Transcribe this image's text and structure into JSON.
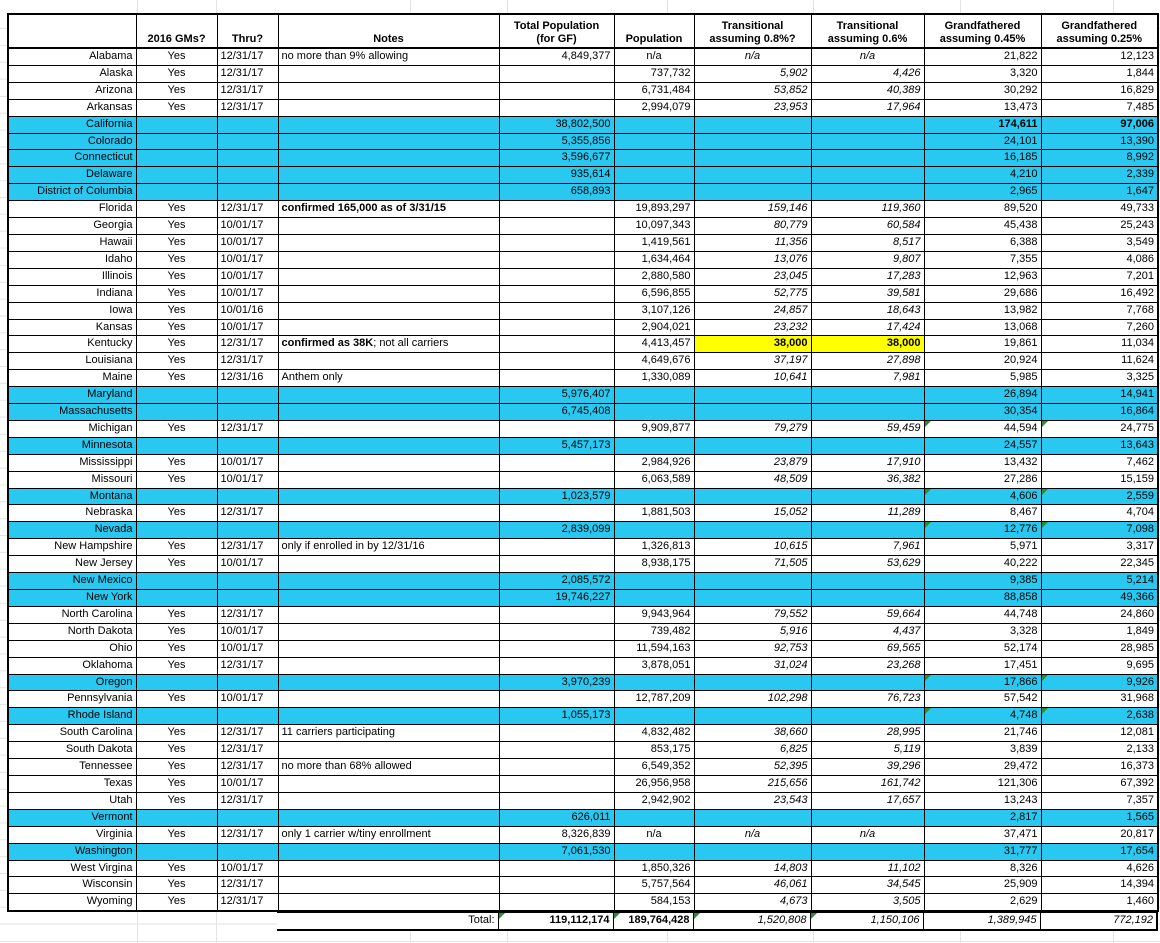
{
  "sheet": {
    "colors": {
      "row_highlight": "#29C8F0",
      "cell_highlight": "#FFFF00",
      "flag_triangle": "#2E8B34",
      "grid": "#000000"
    },
    "header": {
      "state": "",
      "gms": "2016 GMs?",
      "thru": "Thru?",
      "notes": "Notes",
      "total_pop": "Total Population\n(for GF)",
      "pop": "Population",
      "t08": "Transitional\nassuming 0.8%?",
      "t06": "Transitional\nassuming 0.6%",
      "gf045": "Grandfathered\nassuming 0.45%",
      "gf025": "Grandfathered\nassuming 0.25%"
    },
    "rows": [
      {
        "state": "Alabama",
        "gms": "Yes",
        "thru": "12/31/17",
        "notes": "no more than 9% allowing",
        "total_pop": "4,849,377",
        "pop": "n/a",
        "t08": "n/a",
        "t06": "n/a",
        "gf045": "21,822",
        "gf025": "12,123"
      },
      {
        "state": "Alaska",
        "gms": "Yes",
        "thru": "12/31/17",
        "pop": "737,732",
        "t08": "5,902",
        "t06": "4,426",
        "gf045": "3,320",
        "gf025": "1,844"
      },
      {
        "state": "Arizona",
        "gms": "Yes",
        "thru": "12/31/17",
        "pop": "6,731,484",
        "t08": "53,852",
        "t06": "40,389",
        "gf045": "30,292",
        "gf025": "16,829"
      },
      {
        "state": "Arkansas",
        "gms": "Yes",
        "thru": "12/31/17",
        "pop": "2,994,079",
        "t08": "23,953",
        "t06": "17,964",
        "gf045": "13,473",
        "gf025": "7,485"
      },
      {
        "state": "California",
        "hl": true,
        "gfBold": true,
        "total_pop": "38,802,500",
        "gf045": "174,611",
        "gf025": "97,006"
      },
      {
        "state": "Colorado",
        "hl": true,
        "total_pop": "5,355,856",
        "gf045": "24,101",
        "gf025": "13,390"
      },
      {
        "state": "Connecticut",
        "hl": true,
        "total_pop": "3,596,677",
        "gf045": "16,185",
        "gf025": "8,992"
      },
      {
        "state": "Delaware",
        "hl": true,
        "total_pop": "935,614",
        "gf045": "4,210",
        "gf025": "2,339"
      },
      {
        "state": "District of Columbia",
        "hl": true,
        "total_pop": "658,893",
        "gf045": "2,965",
        "gf025": "1,647"
      },
      {
        "state": "Florida",
        "gms": "Yes",
        "thru": "12/31/17",
        "notes_bold": "confirmed 165,000 as of 3/31/15",
        "pop": "19,893,297",
        "t08": "159,146",
        "t06": "119,360",
        "gf045": "89,520",
        "gf025": "49,733"
      },
      {
        "state": "Georgia",
        "gms": "Yes",
        "thru": "10/01/17",
        "pop": "10,097,343",
        "t08": "80,779",
        "t06": "60,584",
        "gf045": "45,438",
        "gf025": "25,243"
      },
      {
        "state": "Hawaii",
        "gms": "Yes",
        "thru": "10/01/17",
        "pop": "1,419,561",
        "t08": "11,356",
        "t06": "8,517",
        "gf045": "6,388",
        "gf025": "3,549"
      },
      {
        "state": "Idaho",
        "gms": "Yes",
        "thru": "10/01/17",
        "pop": "1,634,464",
        "t08": "13,076",
        "t06": "9,807",
        "gf045": "7,355",
        "gf025": "4,086"
      },
      {
        "state": "Illinois",
        "gms": "Yes",
        "thru": "10/01/17",
        "pop": "2,880,580",
        "t08": "23,045",
        "t06": "17,283",
        "gf045": "12,963",
        "gf025": "7,201"
      },
      {
        "state": "Indiana",
        "gms": "Yes",
        "thru": "10/01/17",
        "pop": "6,596,855",
        "t08": "52,775",
        "t06": "39,581",
        "gf045": "29,686",
        "gf025": "16,492"
      },
      {
        "state": "Iowa",
        "gms": "Yes",
        "thru": "10/01/16",
        "pop": "3,107,126",
        "t08": "24,857",
        "t06": "18,643",
        "gf045": "13,982",
        "gf025": "7,768"
      },
      {
        "state": "Kansas",
        "gms": "Yes",
        "thru": "10/01/17",
        "pop": "2,904,021",
        "t08": "23,232",
        "t06": "17,424",
        "gf045": "13,068",
        "gf025": "7,260"
      },
      {
        "state": "Kentucky",
        "gms": "Yes",
        "thru": "12/31/17",
        "notes_bold": "confirmed as 38K",
        "notes": "; not all carriers",
        "yel": true,
        "pop": "4,413,457",
        "t08": "38,000",
        "t06": "38,000",
        "gf045": "19,861",
        "gf025": "11,034"
      },
      {
        "state": "Louisiana",
        "gms": "Yes",
        "thru": "12/31/17",
        "pop": "4,649,676",
        "t08": "37,197",
        "t06": "27,898",
        "gf045": "20,924",
        "gf025": "11,624"
      },
      {
        "state": "Maine",
        "gms": "Yes",
        "thru": "12/31/16",
        "notes": "Anthem only",
        "pop": "1,330,089",
        "t08": "10,641",
        "t06": "7,981",
        "gf045": "5,985",
        "gf025": "3,325"
      },
      {
        "state": "Maryland",
        "hl": true,
        "total_pop": "5,976,407",
        "gf045": "26,894",
        "gf025": "14,941"
      },
      {
        "state": "Massachusetts",
        "hl": true,
        "total_pop": "6,745,408",
        "gf045": "30,354",
        "gf025": "16,864"
      },
      {
        "state": "Michigan",
        "gms": "Yes",
        "thru": "12/31/17",
        "tri": true,
        "pop": "9,909,877",
        "t08": "79,279",
        "t06": "59,459",
        "gf045": "44,594",
        "gf025": "24,775"
      },
      {
        "state": "Minnesota",
        "hl": true,
        "total_pop": "5,457,173",
        "gf045": "24,557",
        "gf025": "13,643"
      },
      {
        "state": "Mississippi",
        "gms": "Yes",
        "thru": "10/01/17",
        "pop": "2,984,926",
        "t08": "23,879",
        "t06": "17,910",
        "gf045": "13,432",
        "gf025": "7,462"
      },
      {
        "state": "Missouri",
        "gms": "Yes",
        "thru": "10/01/17",
        "pop": "6,063,589",
        "t08": "48,509",
        "t06": "36,382",
        "gf045": "27,286",
        "gf025": "15,159"
      },
      {
        "state": "Montana",
        "hl": true,
        "tri": true,
        "total_pop": "1,023,579",
        "gf045": "4,606",
        "gf025": "2,559"
      },
      {
        "state": "Nebraska",
        "gms": "Yes",
        "thru": "12/31/17",
        "pop": "1,881,503",
        "t08": "15,052",
        "t06": "11,289",
        "gf045": "8,467",
        "gf025": "4,704"
      },
      {
        "state": "Nevada",
        "hl": true,
        "tri": true,
        "total_pop": "2,839,099",
        "gf045": "12,776",
        "gf025": "7,098"
      },
      {
        "state": "New Hampshire",
        "gms": "Yes",
        "thru": "12/31/17",
        "notes": "only if enrolled in by 12/31/16",
        "pop": "1,326,813",
        "t08": "10,615",
        "t06": "7,961",
        "gf045": "5,971",
        "gf025": "3,317"
      },
      {
        "state": "New Jersey",
        "gms": "Yes",
        "thru": "10/01/17",
        "pop": "8,938,175",
        "t08": "71,505",
        "t06": "53,629",
        "gf045": "40,222",
        "gf025": "22,345"
      },
      {
        "state": "New Mexico",
        "hl": true,
        "total_pop": "2,085,572",
        "gf045": "9,385",
        "gf025": "5,214"
      },
      {
        "state": "New York",
        "hl": true,
        "total_pop": "19,746,227",
        "gf045": "88,858",
        "gf025": "49,366"
      },
      {
        "state": "North Carolina",
        "gms": "Yes",
        "thru": "12/31/17",
        "pop": "9,943,964",
        "t08": "79,552",
        "t06": "59,664",
        "gf045": "44,748",
        "gf025": "24,860"
      },
      {
        "state": "North Dakota",
        "gms": "Yes",
        "thru": "10/01/17",
        "pop": "739,482",
        "t08": "5,916",
        "t06": "4,437",
        "gf045": "3,328",
        "gf025": "1,849"
      },
      {
        "state": "Ohio",
        "gms": "Yes",
        "thru": "10/01/17",
        "pop": "11,594,163",
        "t08": "92,753",
        "t06": "69,565",
        "gf045": "52,174",
        "gf025": "28,985"
      },
      {
        "state": "Oklahoma",
        "gms": "Yes",
        "thru": "12/31/17",
        "pop": "3,878,051",
        "t08": "31,024",
        "t06": "23,268",
        "gf045": "17,451",
        "gf025": "9,695"
      },
      {
        "state": "Oregon",
        "hl": true,
        "tri": true,
        "total_pop": "3,970,239",
        "gf045": "17,866",
        "gf025": "9,926"
      },
      {
        "state": "Pennsylvania",
        "gms": "Yes",
        "thru": "10/01/17",
        "pop": "12,787,209",
        "t08": "102,298",
        "t06": "76,723",
        "gf045": "57,542",
        "gf025": "31,968"
      },
      {
        "state": "Rhode Island",
        "hl": true,
        "tri": true,
        "total_pop": "1,055,173",
        "gf045": "4,748",
        "gf025": "2,638"
      },
      {
        "state": "South Carolina",
        "gms": "Yes",
        "thru": "12/31/17",
        "notes": "11 carriers participating",
        "pop": "4,832,482",
        "t08": "38,660",
        "t06": "28,995",
        "gf045": "21,746",
        "gf025": "12,081"
      },
      {
        "state": "South Dakota",
        "gms": "Yes",
        "thru": "12/31/17",
        "pop": "853,175",
        "t08": "6,825",
        "t06": "5,119",
        "gf045": "3,839",
        "gf025": "2,133"
      },
      {
        "state": "Tennessee",
        "gms": "Yes",
        "thru": "12/31/17",
        "notes": "no more than 68% allowed",
        "pop": "6,549,352",
        "t08": "52,395",
        "t06": "39,296",
        "gf045": "29,472",
        "gf025": "16,373"
      },
      {
        "state": "Texas",
        "gms": "Yes",
        "thru": "10/01/17",
        "pop": "26,956,958",
        "t08": "215,656",
        "t06": "161,742",
        "gf045": "121,306",
        "gf025": "67,392"
      },
      {
        "state": "Utah",
        "gms": "Yes",
        "thru": "12/31/17",
        "pop": "2,942,902",
        "t08": "23,543",
        "t06": "17,657",
        "gf045": "13,243",
        "gf025": "7,357"
      },
      {
        "state": "Vermont",
        "hl": true,
        "total_pop": "626,011",
        "gf045": "2,817",
        "gf025": "1,565"
      },
      {
        "state": "Virginia",
        "gms": "Yes",
        "thru": "12/31/17",
        "notes": "only 1 carrier w/tiny enrollment",
        "total_pop": "8,326,839",
        "pop": "n/a",
        "t08": "n/a",
        "t06": "n/a",
        "gf045": "37,471",
        "gf025": "20,817"
      },
      {
        "state": "Washington",
        "hl": true,
        "total_pop": "7,061,530",
        "gf045": "31,777",
        "gf025": "17,654"
      },
      {
        "state": "West Virgina",
        "gms": "Yes",
        "thru": "10/01/17",
        "pop": "1,850,326",
        "t08": "14,803",
        "t06": "11,102",
        "gf045": "8,326",
        "gf025": "4,626"
      },
      {
        "state": "Wisconsin",
        "gms": "Yes",
        "thru": "12/31/17",
        "pop": "5,757,564",
        "t08": "46,061",
        "t06": "34,545",
        "gf045": "25,909",
        "gf025": "14,394"
      },
      {
        "state": "Wyoming",
        "gms": "Yes",
        "thru": "12/31/17",
        "pop": "584,153",
        "t08": "4,673",
        "t06": "3,505",
        "gf045": "2,629",
        "gf025": "1,460"
      }
    ],
    "total": {
      "label": "Total:",
      "total_pop": "119,112,174",
      "pop": "189,764,428",
      "t08": "1,520,808",
      "t06": "1,150,106",
      "gf045": "1,389,945",
      "gf025": "772,192"
    }
  }
}
